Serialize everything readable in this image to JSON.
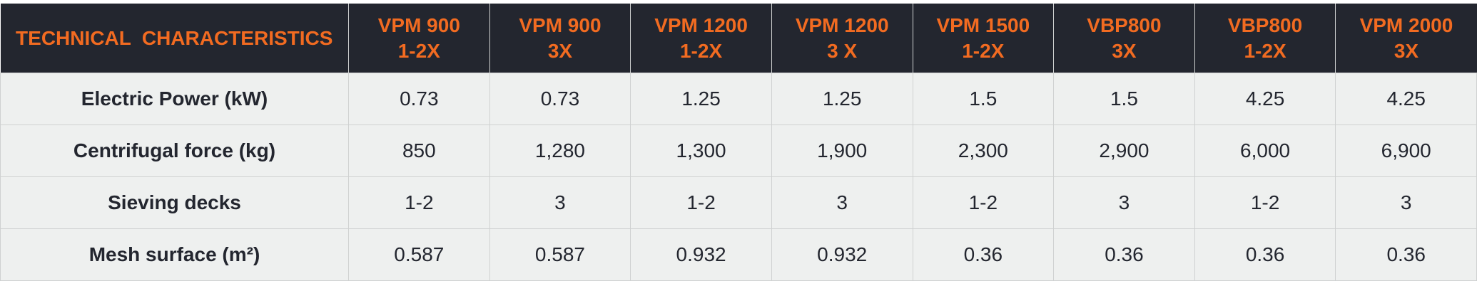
{
  "table": {
    "header": {
      "title": "TECHNICAL  CHARACTERISTICS",
      "columns": [
        [
          "VPM 900",
          "1-2X"
        ],
        [
          "VPM 900",
          "3X"
        ],
        [
          "VPM 1200",
          "1-2X"
        ],
        [
          "VPM 1200",
          "3 X"
        ],
        [
          "VPM 1500",
          "1-2X"
        ],
        [
          "VBP800",
          "3X"
        ],
        [
          "VBP800",
          "1-2X"
        ],
        [
          "VPM 2000",
          "3X"
        ]
      ]
    },
    "rows": [
      {
        "label": "Electric Power (kW)",
        "cells": [
          "0.73",
          "0.73",
          "1.25",
          "1.25",
          "1.5",
          "1.5",
          "4.25",
          "4.25"
        ]
      },
      {
        "label": "Centrifugal force (kg)",
        "cells": [
          "850",
          "1,280",
          "1,300",
          "1,900",
          "2,300",
          "2,900",
          "6,000",
          "6,900"
        ]
      },
      {
        "label": "Sieving decks",
        "cells": [
          "1-2",
          "3",
          "1-2",
          "3",
          "1-2",
          "3",
          "1-2",
          "3"
        ]
      },
      {
        "label": "Mesh surface (m²)",
        "cells": [
          "0.587",
          "0.587",
          "0.932",
          "0.932",
          "0.36",
          "0.36",
          "0.36",
          "0.36"
        ]
      }
    ]
  }
}
